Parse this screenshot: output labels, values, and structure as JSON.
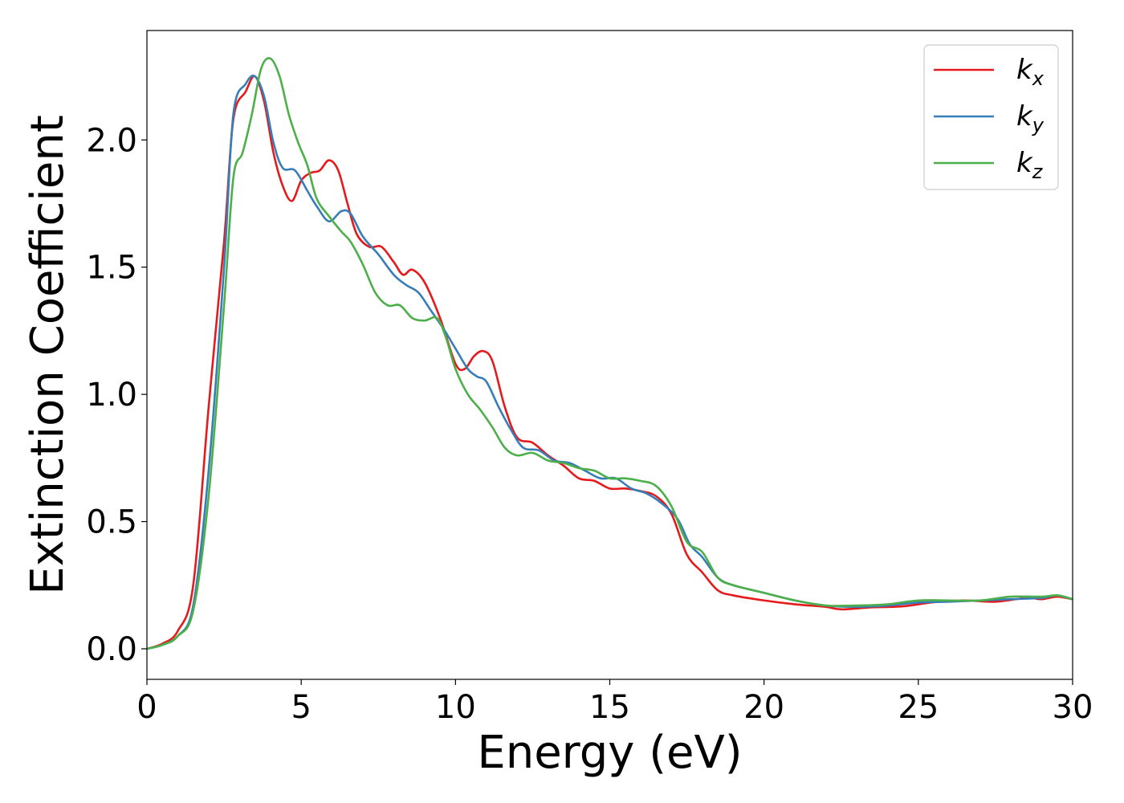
{
  "chart_data": {
    "type": "line",
    "title": "",
    "xlabel": "Energy (eV)",
    "ylabel": "Extinction Coefficient",
    "xlim": [
      0,
      30
    ],
    "ylim": [
      -0.12,
      2.43
    ],
    "xticks": [
      0,
      5,
      10,
      15,
      20,
      25,
      30
    ],
    "yticks": [
      0.0,
      0.5,
      1.0,
      1.5,
      2.0
    ],
    "grid": false,
    "legend": {
      "placement": "top-right"
    },
    "series": [
      {
        "name": "k",
        "subscript": "x",
        "color": "#e41a1c",
        "points": [
          [
            0,
            0.0
          ],
          [
            0.5,
            0.02
          ],
          [
            1.0,
            0.07
          ],
          [
            1.5,
            0.25
          ],
          [
            2.0,
            0.95
          ],
          [
            2.5,
            1.6
          ],
          [
            2.8,
            2.08
          ],
          [
            3.2,
            2.19
          ],
          [
            3.5,
            2.25
          ],
          [
            3.8,
            2.15
          ],
          [
            4.1,
            1.95
          ],
          [
            4.4,
            1.82
          ],
          [
            4.7,
            1.76
          ],
          [
            5.0,
            1.84
          ],
          [
            5.3,
            1.87
          ],
          [
            5.6,
            1.88
          ],
          [
            5.9,
            1.92
          ],
          [
            6.2,
            1.88
          ],
          [
            6.5,
            1.75
          ],
          [
            6.8,
            1.63
          ],
          [
            7.2,
            1.58
          ],
          [
            7.6,
            1.58
          ],
          [
            8.0,
            1.52
          ],
          [
            8.3,
            1.47
          ],
          [
            8.6,
            1.49
          ],
          [
            9.0,
            1.44
          ],
          [
            9.5,
            1.3
          ],
          [
            10.0,
            1.12
          ],
          [
            10.3,
            1.1
          ],
          [
            10.6,
            1.15
          ],
          [
            10.9,
            1.17
          ],
          [
            11.2,
            1.13
          ],
          [
            11.6,
            0.95
          ],
          [
            12.0,
            0.83
          ],
          [
            12.5,
            0.81
          ],
          [
            13.0,
            0.76
          ],
          [
            13.5,
            0.72
          ],
          [
            14.0,
            0.67
          ],
          [
            14.5,
            0.66
          ],
          [
            15.0,
            0.63
          ],
          [
            15.5,
            0.63
          ],
          [
            16.0,
            0.62
          ],
          [
            16.5,
            0.6
          ],
          [
            17.0,
            0.53
          ],
          [
            17.5,
            0.37
          ],
          [
            18.0,
            0.3
          ],
          [
            18.5,
            0.23
          ],
          [
            19.0,
            0.21
          ],
          [
            20.0,
            0.19
          ],
          [
            21.0,
            0.175
          ],
          [
            22.0,
            0.165
          ],
          [
            22.5,
            0.155
          ],
          [
            23.5,
            0.163
          ],
          [
            24.5,
            0.167
          ],
          [
            25.5,
            0.183
          ],
          [
            26.5,
            0.19
          ],
          [
            27.5,
            0.185
          ],
          [
            28.5,
            0.2
          ],
          [
            29.0,
            0.195
          ],
          [
            29.5,
            0.205
          ],
          [
            30.0,
            0.195
          ]
        ]
      },
      {
        "name": "k",
        "subscript": "y",
        "color": "#377eb8",
        "points": [
          [
            0,
            0.0
          ],
          [
            0.5,
            0.015
          ],
          [
            1.0,
            0.05
          ],
          [
            1.5,
            0.17
          ],
          [
            2.0,
            0.7
          ],
          [
            2.5,
            1.5
          ],
          [
            2.8,
            2.1
          ],
          [
            3.2,
            2.22
          ],
          [
            3.5,
            2.25
          ],
          [
            3.8,
            2.17
          ],
          [
            4.1,
            1.99
          ],
          [
            4.4,
            1.89
          ],
          [
            4.8,
            1.88
          ],
          [
            5.2,
            1.8
          ],
          [
            5.5,
            1.74
          ],
          [
            5.9,
            1.68
          ],
          [
            6.3,
            1.72
          ],
          [
            6.6,
            1.71
          ],
          [
            7.0,
            1.62
          ],
          [
            7.5,
            1.55
          ],
          [
            8.0,
            1.47
          ],
          [
            8.4,
            1.43
          ],
          [
            8.8,
            1.4
          ],
          [
            9.2,
            1.33
          ],
          [
            9.6,
            1.26
          ],
          [
            10.0,
            1.18
          ],
          [
            10.4,
            1.1
          ],
          [
            10.7,
            1.07
          ],
          [
            11.0,
            1.05
          ],
          [
            11.4,
            0.95
          ],
          [
            11.8,
            0.86
          ],
          [
            12.2,
            0.79
          ],
          [
            12.7,
            0.78
          ],
          [
            13.2,
            0.74
          ],
          [
            13.7,
            0.73
          ],
          [
            14.2,
            0.7
          ],
          [
            14.7,
            0.67
          ],
          [
            15.2,
            0.67
          ],
          [
            15.7,
            0.63
          ],
          [
            16.2,
            0.61
          ],
          [
            16.7,
            0.57
          ],
          [
            17.2,
            0.51
          ],
          [
            17.6,
            0.41
          ],
          [
            18.0,
            0.36
          ],
          [
            18.5,
            0.28
          ],
          [
            19.0,
            0.25
          ],
          [
            20.0,
            0.22
          ],
          [
            21.0,
            0.19
          ],
          [
            22.0,
            0.17
          ],
          [
            23.0,
            0.165
          ],
          [
            24.0,
            0.17
          ],
          [
            25.0,
            0.182
          ],
          [
            26.0,
            0.185
          ],
          [
            27.0,
            0.19
          ],
          [
            28.0,
            0.195
          ],
          [
            29.0,
            0.2
          ],
          [
            29.5,
            0.21
          ],
          [
            30.0,
            0.195
          ]
        ]
      },
      {
        "name": "k",
        "subscript": "z",
        "color": "#4daf4a",
        "points": [
          [
            0,
            0.0
          ],
          [
            0.5,
            0.015
          ],
          [
            1.0,
            0.05
          ],
          [
            1.5,
            0.15
          ],
          [
            2.0,
            0.6
          ],
          [
            2.5,
            1.35
          ],
          [
            2.8,
            1.85
          ],
          [
            3.1,
            1.95
          ],
          [
            3.4,
            2.1
          ],
          [
            3.7,
            2.28
          ],
          [
            4.0,
            2.32
          ],
          [
            4.3,
            2.25
          ],
          [
            4.6,
            2.1
          ],
          [
            4.9,
            1.99
          ],
          [
            5.2,
            1.9
          ],
          [
            5.5,
            1.77
          ],
          [
            5.9,
            1.7
          ],
          [
            6.3,
            1.64
          ],
          [
            6.6,
            1.6
          ],
          [
            7.0,
            1.51
          ],
          [
            7.4,
            1.4
          ],
          [
            7.8,
            1.35
          ],
          [
            8.2,
            1.35
          ],
          [
            8.6,
            1.3
          ],
          [
            9.0,
            1.29
          ],
          [
            9.4,
            1.3
          ],
          [
            9.7,
            1.22
          ],
          [
            10.0,
            1.1
          ],
          [
            10.4,
            1.0
          ],
          [
            10.8,
            0.94
          ],
          [
            11.2,
            0.87
          ],
          [
            11.6,
            0.79
          ],
          [
            12.0,
            0.76
          ],
          [
            12.5,
            0.77
          ],
          [
            13.0,
            0.74
          ],
          [
            13.5,
            0.73
          ],
          [
            14.0,
            0.71
          ],
          [
            14.5,
            0.7
          ],
          [
            15.0,
            0.67
          ],
          [
            15.5,
            0.67
          ],
          [
            16.0,
            0.66
          ],
          [
            16.5,
            0.64
          ],
          [
            17.0,
            0.56
          ],
          [
            17.5,
            0.42
          ],
          [
            18.0,
            0.38
          ],
          [
            18.5,
            0.28
          ],
          [
            19.0,
            0.25
          ],
          [
            20.0,
            0.22
          ],
          [
            21.0,
            0.19
          ],
          [
            22.0,
            0.17
          ],
          [
            23.0,
            0.17
          ],
          [
            24.0,
            0.175
          ],
          [
            25.0,
            0.19
          ],
          [
            26.0,
            0.19
          ],
          [
            27.0,
            0.19
          ],
          [
            28.0,
            0.205
          ],
          [
            29.0,
            0.205
          ],
          [
            29.5,
            0.21
          ],
          [
            30.0,
            0.195
          ]
        ]
      }
    ]
  }
}
